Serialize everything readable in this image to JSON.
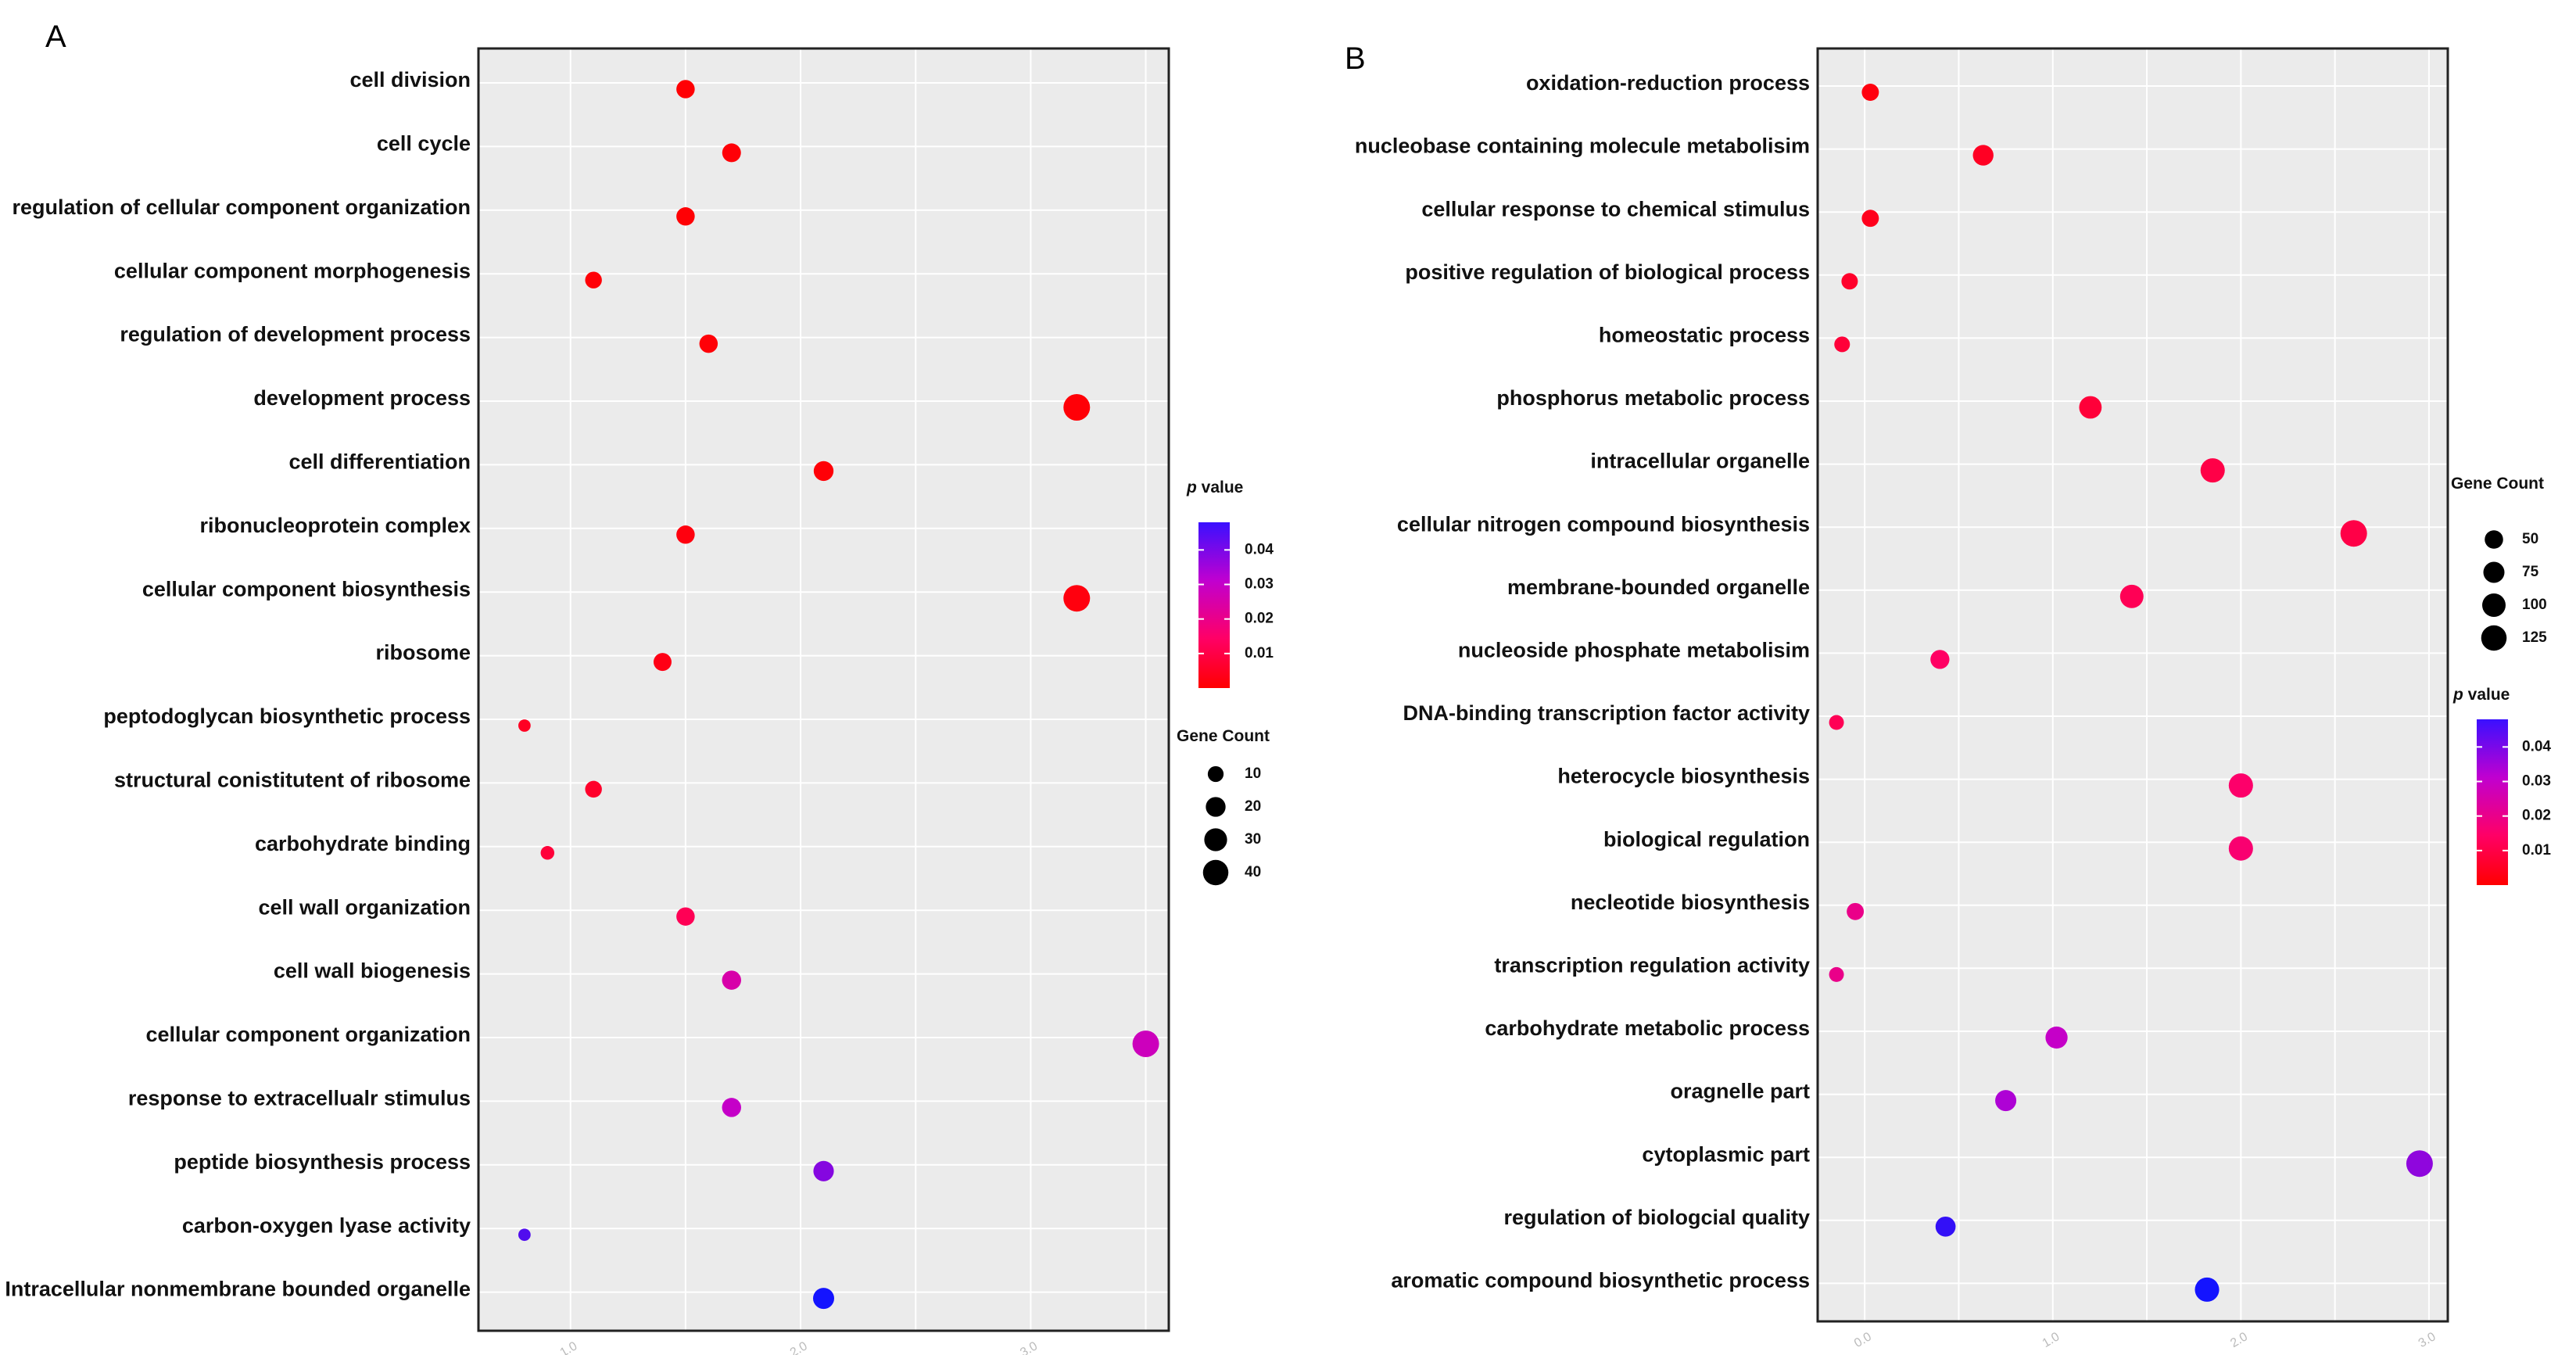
{
  "chart_data": [
    {
      "type": "scatter",
      "panel_label": "A",
      "categories": [
        "cell division",
        "cell cycle",
        "regulation of cellular component organization",
        "cellular component morphogenesis",
        "regulation of development process",
        "development process",
        "cell differentiation",
        "ribonucleoprotein complex",
        "cellular component biosynthesis",
        "ribosome",
        "peptodoglycan biosynthetic process",
        "structural conistitutent of ribosome",
        "carbohydrate binding",
        "cell wall organization",
        "cell wall biogenesis",
        "cellular component organization",
        "response to extracellualr stimulus",
        "peptide biosynthesis process",
        "carbon-oxygen lyase activity",
        "Intracellular nonmembrane bounded organelle"
      ],
      "x": [
        1.5,
        1.7,
        1.5,
        1.1,
        1.6,
        3.2,
        2.1,
        1.5,
        3.2,
        1.4,
        0.8,
        1.1,
        0.9,
        1.5,
        1.7,
        3.5,
        1.7,
        2.1,
        0.8,
        2.1
      ],
      "gene_count": [
        16,
        17,
        16,
        12,
        16,
        45,
        20,
        16,
        45,
        15,
        4,
        12,
        6,
        16,
        18,
        45,
        18,
        22,
        4,
        24
      ],
      "p_value": [
        0.0005,
        0.001,
        0.0005,
        0.001,
        0.001,
        0.001,
        0.001,
        0.002,
        0.002,
        0.003,
        0.005,
        0.006,
        0.008,
        0.012,
        0.025,
        0.028,
        0.03,
        0.037,
        0.042,
        0.048
      ],
      "x_ticks": [
        "1.0",
        "2.0",
        "3.0"
      ],
      "xlim": [
        0.6,
        3.6
      ],
      "legend_pvalue": {
        "title_p": "p",
        "title_rest": " value",
        "ticks": [
          "0.04",
          "0.03",
          "0.02",
          "0.01"
        ],
        "range": [
          0.0,
          0.048
        ]
      },
      "legend_size": {
        "title": "Gene Count",
        "values": [
          10,
          20,
          30,
          40
        ]
      },
      "size_max": 45
    },
    {
      "type": "scatter",
      "panel_label": "B",
      "categories": [
        "oxidation-reduction process",
        "nucleobase containing molecule metabolisim",
        "cellular response to chemical stimulus",
        "positive regulation of biological process",
        "homeostatic process",
        "phosphorus metabolic process",
        "intracellular organelle",
        "cellular nitrogen compound biosynthesis",
        "membrane-bounded organelle",
        "nucleoside phosphate metabolisim",
        "DNA-binding transcription factor activity",
        "heterocycle biosynthesis",
        "biological regulation",
        "necleotide biosynthesis",
        "transcription regulation activity",
        "carbohydrate metabolic process",
        "oragnelle part",
        "cytoplasmic part",
        "regulation of biologcial quality",
        "aromatic compound biosynthetic process"
      ],
      "x": [
        0.03,
        0.63,
        0.03,
        -0.08,
        -0.12,
        1.2,
        1.85,
        2.6,
        1.42,
        0.4,
        -0.15,
        2.0,
        2.0,
        -0.05,
        -0.15,
        1.02,
        0.75,
        2.95,
        0.43,
        1.82
      ],
      "gene_count": [
        40,
        70,
        40,
        35,
        30,
        90,
        110,
        140,
        100,
        55,
        25,
        110,
        110,
        40,
        25,
        85,
        75,
        140,
        65,
        110
      ],
      "p_value": [
        0.002,
        0.005,
        0.004,
        0.006,
        0.008,
        0.008,
        0.01,
        0.01,
        0.012,
        0.014,
        0.012,
        0.015,
        0.016,
        0.02,
        0.02,
        0.03,
        0.033,
        0.036,
        0.045,
        0.048
      ],
      "x_ticks": [
        "0.0",
        "1.0",
        "2.0",
        "3.0"
      ],
      "xlim": [
        -0.25,
        3.1
      ],
      "legend_pvalue": {
        "title_p": "p",
        "title_rest": " value",
        "ticks": [
          "0.04",
          "0.03",
          "0.02",
          "0.01"
        ],
        "range": [
          0.0,
          0.048
        ]
      },
      "legend_size": {
        "title": "Gene Count",
        "values": [
          50,
          75,
          100,
          125
        ]
      },
      "size_max": 140
    }
  ]
}
